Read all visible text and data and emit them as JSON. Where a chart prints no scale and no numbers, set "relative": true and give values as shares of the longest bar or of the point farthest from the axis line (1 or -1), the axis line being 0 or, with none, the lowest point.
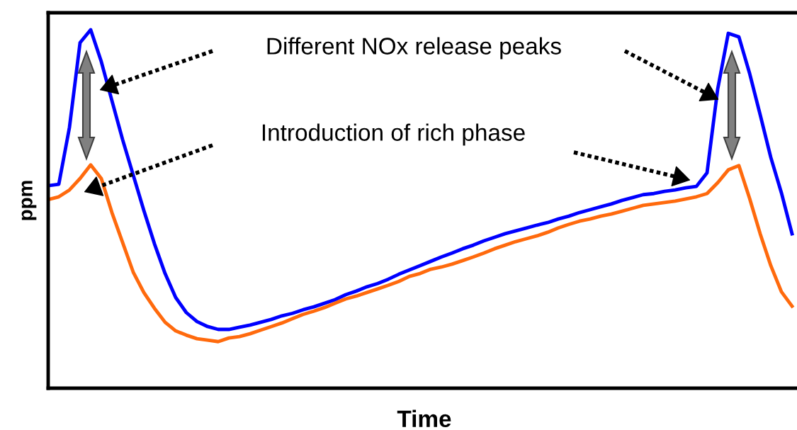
{
  "chart_data": {
    "type": "line",
    "relative": true,
    "xlabel": "Time",
    "ylabel": "ppm",
    "legend": false,
    "marker": "none",
    "line_style": "solid",
    "annotations": [
      "Different NOx release peaks",
      "Introduction of rich phase"
    ],
    "categories": [
      null,
      null,
      null,
      null,
      null,
      null,
      null,
      null,
      null,
      null,
      null,
      null,
      null,
      null,
      null,
      null,
      null,
      null,
      null,
      null,
      null,
      null,
      null,
      null,
      null,
      null,
      null,
      null,
      null,
      null,
      null,
      null,
      null,
      null,
      null,
      null,
      null,
      null,
      null,
      null,
      null,
      null,
      null,
      null,
      null,
      null,
      null,
      null,
      null,
      null,
      null,
      null,
      null,
      null,
      null,
      null,
      null,
      null,
      null,
      null,
      null,
      null,
      null,
      null,
      null,
      null,
      null,
      null,
      null,
      null,
      null
    ],
    "series": [
      {
        "color": "#0000ff",
        "values": [
          0.565,
          0.569,
          0.727,
          0.964,
          1.0,
          0.911,
          0.802,
          0.694,
          0.595,
          0.496,
          0.403,
          0.32,
          0.253,
          0.211,
          0.186,
          0.172,
          0.164,
          0.164,
          0.17,
          0.176,
          0.184,
          0.192,
          0.202,
          0.209,
          0.219,
          0.227,
          0.237,
          0.247,
          0.261,
          0.271,
          0.283,
          0.292,
          0.304,
          0.318,
          0.33,
          0.342,
          0.354,
          0.366,
          0.377,
          0.389,
          0.399,
          0.411,
          0.421,
          0.431,
          0.439,
          0.447,
          0.455,
          0.462,
          0.472,
          0.48,
          0.49,
          0.498,
          0.506,
          0.514,
          0.524,
          0.532,
          0.54,
          0.543,
          0.549,
          0.553,
          0.559,
          0.563,
          0.601,
          0.834,
          0.99,
          0.98,
          0.879,
          0.763,
          0.644,
          0.545,
          0.431
        ]
      },
      {
        "color": "#ff6a0d",
        "values": [
          0.526,
          0.534,
          0.553,
          0.585,
          0.623,
          0.585,
          0.49,
          0.407,
          0.324,
          0.267,
          0.223,
          0.184,
          0.16,
          0.148,
          0.138,
          0.134,
          0.13,
          0.14,
          0.144,
          0.152,
          0.162,
          0.172,
          0.182,
          0.194,
          0.206,
          0.215,
          0.225,
          0.237,
          0.249,
          0.257,
          0.267,
          0.277,
          0.287,
          0.298,
          0.312,
          0.32,
          0.332,
          0.338,
          0.346,
          0.356,
          0.366,
          0.377,
          0.389,
          0.399,
          0.409,
          0.417,
          0.425,
          0.435,
          0.447,
          0.457,
          0.466,
          0.472,
          0.48,
          0.486,
          0.494,
          0.502,
          0.51,
          0.514,
          0.518,
          0.522,
          0.528,
          0.534,
          0.543,
          0.573,
          0.609,
          0.621,
          0.53,
          0.431,
          0.342,
          0.269,
          0.229
        ]
      }
    ]
  }
}
